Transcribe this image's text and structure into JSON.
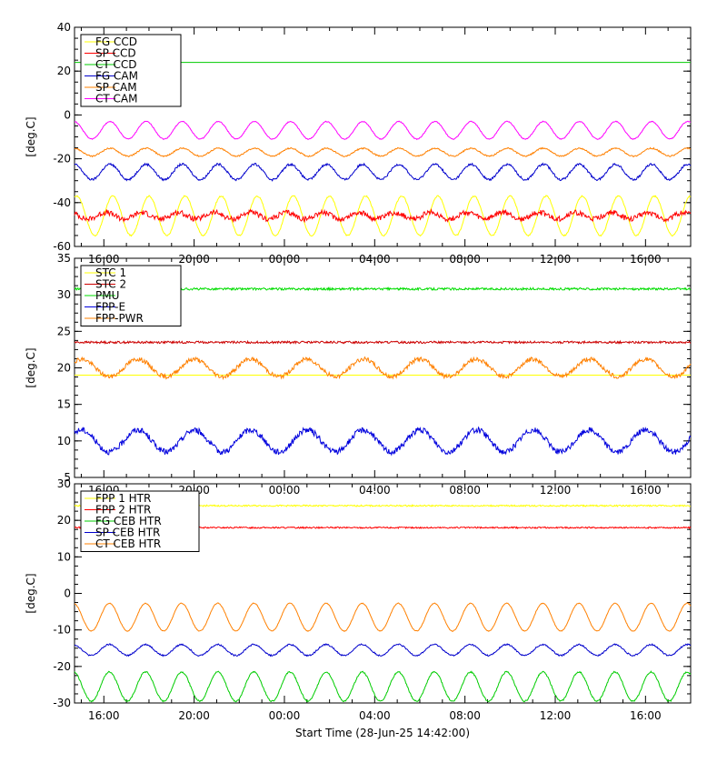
{
  "chart_data": [
    {
      "type": "line",
      "ylabel": "[deg.C]",
      "ylim": [
        -60,
        40
      ],
      "yticks": [
        -60,
        -40,
        -20,
        0,
        20,
        40
      ],
      "xlim": [
        "2025-06-28T14:42",
        "2025-06-29T18:00"
      ],
      "xtick_labels": [
        "16:00",
        "20:00",
        "00:00",
        "04:00",
        "08:00",
        "12:00",
        "16:00"
      ],
      "legend_position": "top-left",
      "series": [
        {
          "name": "FG CCD",
          "color": "#ffff00",
          "mean": -46,
          "amplitude": 9,
          "period_h": 1.6,
          "phase": 0.0,
          "noise": 0.3
        },
        {
          "name": "SP CCD",
          "color": "#ff0000",
          "mean": -46,
          "amplitude": 1.5,
          "period_h": 1.6,
          "phase": 1.2,
          "noise": 1.2
        },
        {
          "name": "CT CCD",
          "color": "#00cc00",
          "mean": 24,
          "amplitude": 0,
          "period_h": 1.6,
          "phase": 0.0,
          "noise": 0.0
        },
        {
          "name": "FG CAM",
          "color": "#0000cc",
          "mean": -26,
          "amplitude": 3.5,
          "period_h": 1.6,
          "phase": 0.5,
          "noise": 0.5
        },
        {
          "name": "SP CAM",
          "color": "#ff8000",
          "mean": -17,
          "amplitude": 1.8,
          "period_h": 1.6,
          "phase": 0.5,
          "noise": 0.3
        },
        {
          "name": "CT CAM",
          "color": "#ff00ff",
          "mean": -7,
          "amplitude": 4,
          "period_h": 1.6,
          "phase": 0.5,
          "noise": 0.2
        }
      ]
    },
    {
      "type": "line",
      "ylabel": "[deg.C]",
      "ylim": [
        5,
        35
      ],
      "yticks": [
        5,
        10,
        15,
        20,
        25,
        30,
        35
      ],
      "xlim": [
        "2025-06-28T14:42",
        "2025-06-29T18:00"
      ],
      "xtick_labels": [
        "16:00",
        "20:00",
        "00:00",
        "04:00",
        "08:00",
        "12:00",
        "16:00"
      ],
      "legend_position": "top-left",
      "series": [
        {
          "name": "STC 1",
          "color": "#ffff00",
          "mean": 19,
          "amplitude": 0,
          "period_h": 2.0,
          "phase": 0.0,
          "noise": 0.0
        },
        {
          "name": "STC 2",
          "color": "#cc0000",
          "mean": 23.5,
          "amplitude": 0,
          "period_h": 2.0,
          "phase": 0.0,
          "noise": 0.15
        },
        {
          "name": "PMU",
          "color": "#00dd00",
          "mean": 30.8,
          "amplitude": 0,
          "period_h": 2.0,
          "phase": 0.0,
          "noise": 0.15
        },
        {
          "name": "FPP-E",
          "color": "#0000dd",
          "mean": 10,
          "amplitude": 1.5,
          "period_h": 2.5,
          "phase": 0.3,
          "noise": 0.4
        },
        {
          "name": "FPP-PWR",
          "color": "#ff8000",
          "mean": 20,
          "amplitude": 1.2,
          "period_h": 2.5,
          "phase": 0.3,
          "noise": 0.3
        }
      ]
    },
    {
      "type": "line",
      "ylabel": "[deg.C]",
      "ylim": [
        -30,
        30
      ],
      "yticks": [
        -30,
        -20,
        -10,
        0,
        10,
        20,
        30
      ],
      "xlim": [
        "2025-06-28T14:42",
        "2025-06-29T18:00"
      ],
      "xtick_labels": [
        "16:00",
        "20:00",
        "00:00",
        "04:00",
        "08:00",
        "12:00",
        "16:00"
      ],
      "xlabel": "Start Time (28-Jun-25 14:42:00)",
      "legend_position": "top-left",
      "series": [
        {
          "name": "FPP 1 HTR",
          "color": "#ffff00",
          "mean": 24,
          "amplitude": 0,
          "period_h": 1.6,
          "phase": 0.0,
          "noise": 0.2
        },
        {
          "name": "FPP 2 HTR",
          "color": "#ff0000",
          "mean": 18,
          "amplitude": 0,
          "period_h": 1.6,
          "phase": 0.0,
          "noise": 0.2
        },
        {
          "name": "FG CEB HTR",
          "color": "#00cc00",
          "mean": -25.5,
          "amplitude": 4,
          "period_h": 1.6,
          "phase": 0.6,
          "noise": 0.2
        },
        {
          "name": "SP CEB HTR",
          "color": "#0000cc",
          "mean": -15.5,
          "amplitude": 1.5,
          "period_h": 1.6,
          "phase": 0.6,
          "noise": 0.2
        },
        {
          "name": "CT CEB HTR",
          "color": "#ff8000",
          "mean": -6.5,
          "amplitude": 3.8,
          "period_h": 1.6,
          "phase": 0.6,
          "noise": 0.1
        }
      ]
    }
  ]
}
